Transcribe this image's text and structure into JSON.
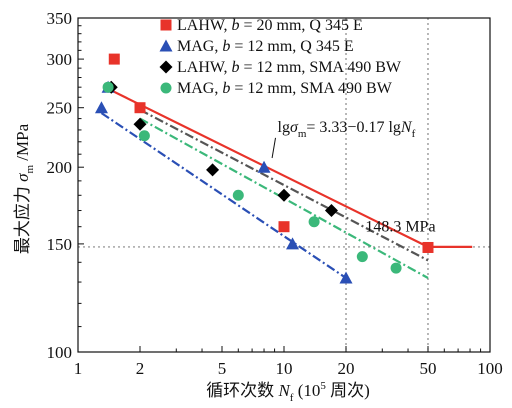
{
  "chart_data": {
    "type": "scatter",
    "xscale": "log",
    "yscale": "log",
    "xlim": [
      1,
      100
    ],
    "ylim": [
      100,
      350
    ],
    "xticks": [
      1,
      2,
      5,
      10,
      20,
      50,
      100
    ],
    "xtick_labels": [
      "1",
      "2",
      "5",
      "10",
      "20",
      "50",
      "100"
    ],
    "yticks": [
      100,
      150,
      200,
      250,
      300,
      350
    ],
    "ytick_labels": [
      "100",
      "150",
      "200",
      "250",
      "300",
      "350"
    ],
    "xlabel_parts": [
      "循环次数 ",
      "N",
      "f",
      " (10",
      "5",
      " 周次)"
    ],
    "ylabel_parts": [
      "最大应力 ",
      "σ",
      "m",
      " /MPa"
    ],
    "grid": false,
    "legend_position": "top-right",
    "series": [
      {
        "name_parts": [
          "LAHW, ",
          "b",
          " = 20 mm, Q 345 E"
        ],
        "marker": "square",
        "color": "#e8332a",
        "points": [
          [
            1.5,
            300
          ],
          [
            2.0,
            250
          ],
          [
            10.0,
            160
          ],
          [
            50.0,
            148
          ]
        ],
        "fit_line": {
          "x": [
            1.35,
            50,
            82
          ],
          "y": [
            270,
            148.3,
            148.3
          ],
          "style": "solid",
          "color": "#e8332a"
        }
      },
      {
        "name_parts": [
          "MAG, ",
          "b",
          " = 12 mm, Q 345 E"
        ],
        "marker": "triangle",
        "color": "#2a4fb5",
        "points": [
          [
            1.3,
            250
          ],
          [
            1.4,
            270
          ],
          [
            8.0,
            200
          ],
          [
            11.0,
            150
          ],
          [
            20.0,
            132
          ]
        ],
        "fit_line": {
          "x": [
            1.3,
            20
          ],
          "y": [
            245,
            132
          ],
          "style": "dashdot",
          "color": "#2a4fb5"
        }
      },
      {
        "name_parts": [
          "LAHW, ",
          "b",
          " = 12 mm, SMA 490 BW"
        ],
        "marker": "diamond",
        "color": "#000000",
        "points": [
          [
            1.45,
            270
          ],
          [
            2.0,
            235
          ],
          [
            4.5,
            198
          ],
          [
            10.0,
            180
          ],
          [
            17.0,
            170
          ]
        ],
        "fit_line": {
          "x": [
            2.0,
            50
          ],
          "y": [
            248,
            141
          ],
          "style": "dashdot",
          "color": "#555555"
        }
      },
      {
        "name_parts": [
          "MAG, ",
          "b",
          " = 12 mm, SMA 490 BW"
        ],
        "marker": "circle",
        "color": "#3bb87a",
        "points": [
          [
            1.4,
            270
          ],
          [
            2.1,
            225
          ],
          [
            6.0,
            180
          ],
          [
            14.0,
            163
          ],
          [
            24.0,
            143
          ],
          [
            35.0,
            137
          ]
        ],
        "fit_line": {
          "x": [
            2.0,
            50
          ],
          "y": [
            240,
            132
          ],
          "style": "dashdot",
          "color": "#3bb87a"
        }
      }
    ],
    "reference_lines": [
      {
        "orientation": "horizontal",
        "y": 148.3,
        "style": "dotted",
        "color": "#888888"
      },
      {
        "orientation": "vertical",
        "x": 20,
        "style": "dotted",
        "color": "#888888"
      },
      {
        "orientation": "vertical",
        "x": 50,
        "style": "dotted",
        "color": "#888888"
      }
    ],
    "annotations": {
      "fit_equation_parts": [
        "lg",
        "σ",
        "m",
        "= 3.33−0.17 lg",
        "N",
        "f"
      ],
      "fit_pointer": {
        "from": [
          9.2,
          197
        ],
        "to": [
          7.0,
          185
        ]
      },
      "fit_anchor": [
        9.3,
        198
      ],
      "value_label": "148.3 MPa",
      "value_anchor": [
        24.0,
        157
      ]
    }
  }
}
